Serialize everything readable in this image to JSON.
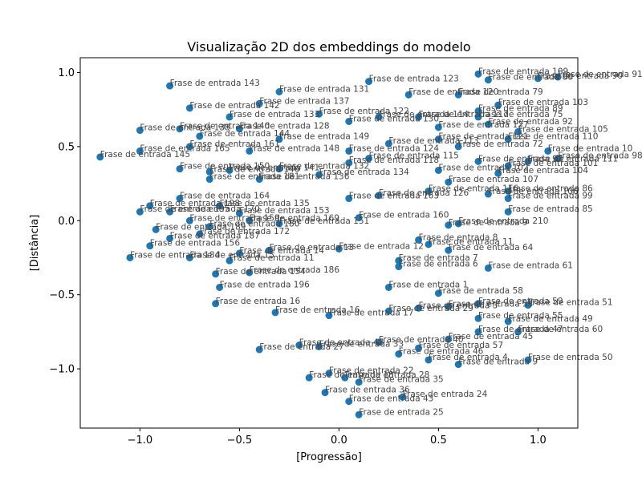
{
  "chart_data": {
    "type": "scatter",
    "title": "Visualização 2D dos embeddings do modelo",
    "xlabel": "[Progressão]",
    "ylabel": "[Distância]",
    "xlim": [
      -1.3,
      1.2
    ],
    "ylim": [
      -1.4,
      1.1
    ],
    "xticks": [
      "−1.0",
      "−0.5",
      "0.0",
      "0.5",
      "1.0"
    ],
    "yticks": [
      "−1.0",
      "−0.5",
      "0.0",
      "0.5",
      "1.0"
    ],
    "xtick_values": [
      -1.0,
      -0.5,
      0.0,
      0.5,
      1.0
    ],
    "ytick_values": [
      -1.0,
      -0.5,
      0.0,
      0.5,
      1.0
    ],
    "grid": false,
    "marker_color": "#1f77b4",
    "label_color": "#444444",
    "points": [
      {
        "x": 0.1,
        "y": -1.31,
        "label": "Frase de entrada 25"
      },
      {
        "x": 0.32,
        "y": -1.19,
        "label": "Frase de entrada 24"
      },
      {
        "x": 0.05,
        "y": -1.22,
        "label": "Frase de entrada 43"
      },
      {
        "x": 0.1,
        "y": -1.09,
        "label": "Frase de entrada 35"
      },
      {
        "x": -0.07,
        "y": -1.16,
        "label": "Frase de entrada 36"
      },
      {
        "x": -0.15,
        "y": -1.06,
        "label": "Frase de entrada 18"
      },
      {
        "x": 0.03,
        "y": -1.06,
        "label": "Frase de entrada 28"
      },
      {
        "x": -0.05,
        "y": -1.03,
        "label": "Frase de entrada 22"
      },
      {
        "x": 0.95,
        "y": -0.94,
        "label": "Frase de entrada 50"
      },
      {
        "x": 0.6,
        "y": -0.97,
        "label": "Frase de entrada 9"
      },
      {
        "x": 0.45,
        "y": -0.94,
        "label": "Frase de entrada 4"
      },
      {
        "x": 0.3,
        "y": -0.9,
        "label": "Frase de entrada 46"
      },
      {
        "x": 0.4,
        "y": -0.86,
        "label": "Frase de entrada 57"
      },
      {
        "x": -0.4,
        "y": -0.87,
        "label": "Frase de entrada 27"
      },
      {
        "x": -0.2,
        "y": -0.84,
        "label": "Frase de entrada 48"
      },
      {
        "x": -0.1,
        "y": -0.85,
        "label": "Frase de entrada 33"
      },
      {
        "x": 0.2,
        "y": -0.82,
        "label": "Frase de entrada 40"
      },
      {
        "x": 0.55,
        "y": -0.8,
        "label": "Frase de entrada 45"
      },
      {
        "x": 0.7,
        "y": -0.75,
        "label": "Frase de entrada 47"
      },
      {
        "x": 0.9,
        "y": -0.75,
        "label": "Frase de entrada 60"
      },
      {
        "x": 0.85,
        "y": -0.68,
        "label": "Frase de entrada 49"
      },
      {
        "x": 0.7,
        "y": -0.66,
        "label": "Frase de entrada 55"
      },
      {
        "x": 0.95,
        "y": -0.57,
        "label": "Frase de entrada 51"
      },
      {
        "x": 0.7,
        "y": -0.56,
        "label": "Frase de entrada 59"
      },
      {
        "x": 0.55,
        "y": -0.58,
        "label": "Frase de entrada 53"
      },
      {
        "x": 0.4,
        "y": -0.59,
        "label": "Frase de entrada 3"
      },
      {
        "x": 0.25,
        "y": -0.61,
        "label": "Frase de entrada 29"
      },
      {
        "x": -0.05,
        "y": -0.64,
        "label": "Frase de entrada 17"
      },
      {
        "x": -0.32,
        "y": -0.62,
        "label": "Frase de entrada 16"
      },
      {
        "x": -0.62,
        "y": -0.56,
        "label": "Frase de entrada 16"
      },
      {
        "x": 0.5,
        "y": -0.49,
        "label": "Frase de entrada 58"
      },
      {
        "x": 0.25,
        "y": -0.45,
        "label": "Frase de entrada 1"
      },
      {
        "x": -0.6,
        "y": -0.45,
        "label": "Frase de entrada 196"
      },
      {
        "x": -0.62,
        "y": -0.36,
        "label": "Frase de entrada 154"
      },
      {
        "x": -0.45,
        "y": -0.35,
        "label": "Frase de entrada 186"
      },
      {
        "x": 0.75,
        "y": -0.32,
        "label": "Frase de entrada 61"
      },
      {
        "x": 0.3,
        "y": -0.31,
        "label": "Frase de entrada 6"
      },
      {
        "x": 0.3,
        "y": -0.27,
        "label": "Frase de entrada 7"
      },
      {
        "x": 0.55,
        "y": -0.2,
        "label": "Frase de entrada 64"
      },
      {
        "x": 0.45,
        "y": -0.16,
        "label": "Frase de entrada 11"
      },
      {
        "x": 0.4,
        "y": -0.13,
        "label": "Frase de entrada 8"
      },
      {
        "x": 0.0,
        "y": -0.19,
        "label": "Frase de entrada 12"
      },
      {
        "x": -0.35,
        "y": -0.2,
        "label": "Frase de entrada 13"
      },
      {
        "x": -0.5,
        "y": -0.22,
        "label": "Frase de entrada 14"
      },
      {
        "x": -0.55,
        "y": -0.27,
        "label": "Frase de entrada 11"
      },
      {
        "x": -1.05,
        "y": -0.25,
        "label": "Frase de entrada 184"
      },
      {
        "x": -0.75,
        "y": -0.25,
        "label": "Frase de entrada 15"
      },
      {
        "x": -0.95,
        "y": -0.17,
        "label": "Frase de entrada 156"
      },
      {
        "x": -0.85,
        "y": -0.12,
        "label": "Frase de entrada 187"
      },
      {
        "x": -0.7,
        "y": -0.09,
        "label": "Frase de entrada 172"
      },
      {
        "x": -0.65,
        "y": -0.04,
        "label": "Frase de entrada 180"
      },
      {
        "x": -0.92,
        "y": -0.06,
        "label": "Frase de entrada 189"
      },
      {
        "x": -0.75,
        "y": 0.0,
        "label": "Frase de entrada 159"
      },
      {
        "x": -0.85,
        "y": 0.06,
        "label": "Frase de entrada 170"
      },
      {
        "x": -1.0,
        "y": 0.06,
        "label": "Frase de entrada 195"
      },
      {
        "x": -0.95,
        "y": 0.1,
        "label": "Frase de entrada 198"
      },
      {
        "x": -0.8,
        "y": 0.15,
        "label": "Frase de entrada 164"
      },
      {
        "x": -0.6,
        "y": 0.1,
        "label": "Frase de entrada 135"
      },
      {
        "x": -0.5,
        "y": 0.05,
        "label": "Frase de entrada 153"
      },
      {
        "x": -0.45,
        "y": 0.0,
        "label": "Frase de entrada 169"
      },
      {
        "x": -0.3,
        "y": -0.02,
        "label": "Frase de entrada 151"
      },
      {
        "x": 0.1,
        "y": 0.02,
        "label": "Frase de entrada 160"
      },
      {
        "x": 0.05,
        "y": 0.15,
        "label": "Frase de entrada 163"
      },
      {
        "x": 0.2,
        "y": 0.17,
        "label": "Frase de entrada 126"
      },
      {
        "x": 0.45,
        "y": 0.2,
        "label": "Frase de entrada 116"
      },
      {
        "x": 0.55,
        "y": -0.03,
        "label": "Frase de entrada 9"
      },
      {
        "x": 0.6,
        "y": -0.02,
        "label": "Frase de entrada 210"
      },
      {
        "x": 0.85,
        "y": 0.06,
        "label": "Frase de entrada 85"
      },
      {
        "x": 0.85,
        "y": 0.15,
        "label": "Frase de entrada 99"
      },
      {
        "x": 0.85,
        "y": 0.2,
        "label": "Frase de entrada 86"
      },
      {
        "x": 0.75,
        "y": 0.18,
        "label": "Frase de entrada 106"
      },
      {
        "x": 0.8,
        "y": 0.32,
        "label": "Frase de entrada 104"
      },
      {
        "x": 0.85,
        "y": 0.37,
        "label": "Frase de entrada 101"
      },
      {
        "x": 0.95,
        "y": 0.4,
        "label": "Frase de entrada 111"
      },
      {
        "x": 1.05,
        "y": 0.47,
        "label": "Frase de entrada 10"
      },
      {
        "x": 1.1,
        "y": 0.42,
        "label": "Frase de entrada 98"
      },
      {
        "x": 0.85,
        "y": 0.55,
        "label": "Frase de entrada 110"
      },
      {
        "x": 0.9,
        "y": 0.6,
        "label": "Frase de entrada 105"
      },
      {
        "x": 0.75,
        "y": 0.65,
        "label": "Frase de entrada 92"
      },
      {
        "x": 0.7,
        "y": 0.7,
        "label": "Frase de entrada 75"
      },
      {
        "x": 0.7,
        "y": 0.74,
        "label": "Frase de entrada 89"
      },
      {
        "x": 0.8,
        "y": 0.78,
        "label": "Frase de entrada 103"
      },
      {
        "x": 0.6,
        "y": 0.85,
        "label": "Frase de entrada 79"
      },
      {
        "x": 0.35,
        "y": 0.85,
        "label": "Frase de entrada 120"
      },
      {
        "x": 0.7,
        "y": 0.99,
        "label": "Frase de entrada 109"
      },
      {
        "x": 0.75,
        "y": 0.95,
        "label": "Frase de entrada 80"
      },
      {
        "x": 1.1,
        "y": 0.97,
        "label": "Frase de entrada 91"
      },
      {
        "x": 1.0,
        "y": 0.96,
        "label": "Frase de entrada 90"
      },
      {
        "x": 0.15,
        "y": 0.94,
        "label": "Frase de entrada 123"
      },
      {
        "x": -0.3,
        "y": 0.87,
        "label": "Frase de entrada 131"
      },
      {
        "x": -0.4,
        "y": 0.79,
        "label": "Frase de entrada 137"
      },
      {
        "x": -0.85,
        "y": 0.91,
        "label": "Frase de entrada 143"
      },
      {
        "x": -0.75,
        "y": 0.76,
        "label": "Frase de entrada 142"
      },
      {
        "x": -0.55,
        "y": 0.7,
        "label": "Frase de entrada 133"
      },
      {
        "x": -0.1,
        "y": 0.72,
        "label": "Frase de entrada 122"
      },
      {
        "x": 0.2,
        "y": 0.7,
        "label": "Frase de entrada 114"
      },
      {
        "x": 0.4,
        "y": 0.7,
        "label": "Frase de entrada 117"
      },
      {
        "x": 0.5,
        "y": 0.63,
        "label": "Frase de entrada 127"
      },
      {
        "x": 0.05,
        "y": 0.67,
        "label": "Frase de entrada 130"
      },
      {
        "x": -0.5,
        "y": 0.62,
        "label": "Frase de entrada 128"
      },
      {
        "x": -0.8,
        "y": 0.62,
        "label": "Frase de entrada 140"
      },
      {
        "x": -1.0,
        "y": 0.61,
        "label": "Frase de entrada 138"
      },
      {
        "x": -0.7,
        "y": 0.57,
        "label": "Frase de entrada 144"
      },
      {
        "x": -0.3,
        "y": 0.55,
        "label": "Frase de entrada 149"
      },
      {
        "x": 0.5,
        "y": 0.55,
        "label": "Frase de entrada 121"
      },
      {
        "x": 0.25,
        "y": 0.52,
        "label": "Frase de entrada 113"
      },
      {
        "x": 0.6,
        "y": 0.5,
        "label": "Frase de entrada 72"
      },
      {
        "x": -0.75,
        "y": 0.5,
        "label": "Frase de entrada 161"
      },
      {
        "x": -1.0,
        "y": 0.47,
        "label": "Frase de entrada 165"
      },
      {
        "x": -1.2,
        "y": 0.43,
        "label": "Frase de entrada 145"
      },
      {
        "x": -0.45,
        "y": 0.47,
        "label": "Frase de entrada 148"
      },
      {
        "x": 0.05,
        "y": 0.47,
        "label": "Frase de entrada 124"
      },
      {
        "x": 0.15,
        "y": 0.42,
        "label": "Frase de entrada 115"
      },
      {
        "x": -0.3,
        "y": 0.35,
        "label": "Frase de entrada 132"
      },
      {
        "x": -0.55,
        "y": 0.34,
        "label": "Frase de entrada 141"
      },
      {
        "x": -0.65,
        "y": 0.33,
        "label": "Frase de entrada 146"
      },
      {
        "x": -0.8,
        "y": 0.35,
        "label": "Frase de entrada 150"
      },
      {
        "x": -0.1,
        "y": 0.31,
        "label": "Frase de entrada 134"
      },
      {
        "x": -0.4,
        "y": 0.28,
        "label": "Frase de entrada 136"
      },
      {
        "x": -0.65,
        "y": 0.28,
        "label": "Frase de entrada 181"
      },
      {
        "x": 0.05,
        "y": 0.39,
        "label": "Frase de entrada 118"
      },
      {
        "x": 0.5,
        "y": 0.34,
        "label": "Frase de entrada 102"
      },
      {
        "x": 0.55,
        "y": 0.26,
        "label": "Frase de entrada 107"
      },
      {
        "x": 0.7,
        "y": 0.4,
        "label": "Frase de entrada 93"
      }
    ]
  }
}
